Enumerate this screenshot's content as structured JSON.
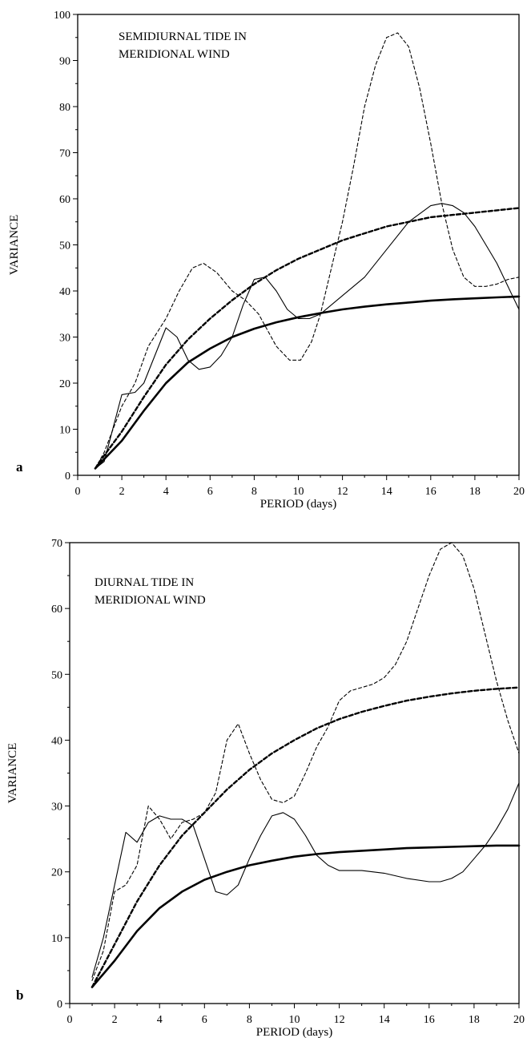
{
  "chart_data": [
    {
      "type": "line",
      "panel_label": "a",
      "annotation": [
        "SEMIDIURNAL TIDE IN",
        "MERIDIONAL WIND"
      ],
      "xlabel": "PERIOD (days)",
      "ylabel": "VARIANCE",
      "xlim": [
        0,
        20
      ],
      "ylim": [
        0,
        100
      ],
      "xticks": [
        0,
        2,
        4,
        6,
        8,
        10,
        12,
        14,
        16,
        18,
        20
      ],
      "yticks": [
        0,
        10,
        20,
        30,
        40,
        50,
        60,
        70,
        80,
        90,
        100
      ],
      "series": [
        {
          "style": "thin-dashed",
          "x": [
            0.8,
            1.2,
            2.0,
            2.6,
            3.2,
            4.0,
            4.6,
            5.2,
            5.7,
            6.3,
            7.0,
            7.6,
            8.2,
            9.0,
            9.6,
            10.1,
            10.6,
            11.0,
            11.5,
            12.0,
            12.5,
            13.0,
            13.5,
            14.0,
            14.5,
            15.0,
            15.5,
            16.0,
            16.5,
            17.0,
            17.5,
            18.0,
            18.5,
            19.0,
            19.5,
            20.0
          ],
          "y": [
            1.5,
            5,
            15,
            20,
            28,
            34,
            40,
            45,
            46,
            44,
            40,
            38,
            35,
            28,
            25,
            25,
            29,
            35,
            45,
            55,
            67,
            80,
            89,
            95,
            96,
            93,
            84,
            72,
            59,
            49,
            43,
            41,
            41,
            41.5,
            42.5,
            43
          ]
        },
        {
          "style": "thin-solid",
          "x": [
            0.8,
            1.2,
            2.0,
            2.6,
            3.0,
            3.5,
            4.0,
            4.5,
            5.0,
            5.5,
            6.0,
            6.5,
            7.0,
            7.5,
            8.0,
            8.5,
            9.0,
            9.5,
            10.0,
            10.5,
            11.0,
            12.0,
            13.0,
            14.0,
            15.0,
            16.0,
            16.5,
            17.0,
            17.5,
            18.0,
            18.5,
            19.0,
            19.5,
            20.0
          ],
          "y": [
            1.5,
            3,
            17.5,
            18,
            20,
            26,
            32,
            30,
            25,
            23,
            23.5,
            26,
            30,
            37,
            42.5,
            43,
            40,
            36,
            34,
            34,
            35,
            39,
            43,
            49,
            55,
            58.5,
            59,
            58.5,
            57,
            54,
            50,
            46,
            41,
            36
          ]
        },
        {
          "style": "bold-dashed",
          "x": [
            0.8,
            1,
            2,
            3,
            4,
            5,
            6,
            7,
            8,
            9,
            10,
            11,
            12,
            13,
            14,
            15,
            16,
            17,
            18,
            19,
            20
          ],
          "y": [
            1.5,
            3,
            9.5,
            17,
            24,
            29.5,
            34,
            38,
            41.5,
            44.5,
            47,
            49,
            51,
            52.5,
            54,
            55,
            56,
            56.5,
            57,
            57.5,
            58
          ]
        },
        {
          "style": "bold-solid",
          "x": [
            0.8,
            1,
            2,
            3,
            4,
            5,
            6,
            7,
            8,
            9,
            10,
            11,
            12,
            13,
            14,
            15,
            16,
            17,
            18,
            19,
            20
          ],
          "y": [
            1.5,
            2.5,
            7.5,
            14,
            20,
            24.5,
            27.5,
            30,
            31.8,
            33.2,
            34.3,
            35.2,
            36,
            36.6,
            37.1,
            37.5,
            37.9,
            38.2,
            38.4,
            38.6,
            38.8
          ]
        }
      ]
    },
    {
      "type": "line",
      "panel_label": "b",
      "annotation": [
        "DIURNAL TIDE IN",
        "MERIDIONAL WIND"
      ],
      "xlabel": "PERIOD (days)",
      "ylabel": "VARIANCE",
      "xlim": [
        0,
        20
      ],
      "ylim": [
        0,
        70
      ],
      "xticks": [
        0,
        2,
        4,
        6,
        8,
        10,
        12,
        14,
        16,
        18,
        20
      ],
      "yticks": [
        0,
        10,
        20,
        30,
        40,
        50,
        60,
        70
      ],
      "series": [
        {
          "style": "thin-dashed",
          "x": [
            1.0,
            1.5,
            2.0,
            2.5,
            3.0,
            3.5,
            4.0,
            4.5,
            5.0,
            5.5,
            6.0,
            6.5,
            7.0,
            7.5,
            8.0,
            8.5,
            9.0,
            9.5,
            10.0,
            10.5,
            11.0,
            11.5,
            12.0,
            12.5,
            13.0,
            13.5,
            14.0,
            14.5,
            15.0,
            15.5,
            16.0,
            16.5,
            17.0,
            17.5,
            18.0,
            18.5,
            19.0,
            19.5,
            20.0
          ],
          "y": [
            3.5,
            8,
            17,
            18,
            21,
            30,
            28,
            25,
            27.5,
            28,
            29,
            32,
            40,
            42.5,
            38,
            34,
            31,
            30.5,
            31.5,
            35,
            39,
            42,
            46,
            47.5,
            48,
            48.5,
            49.5,
            51.5,
            55,
            60,
            65,
            69,
            70,
            68,
            63,
            56,
            49,
            43,
            38
          ]
        },
        {
          "style": "thin-solid",
          "x": [
            1.0,
            1.5,
            2.0,
            2.5,
            3.0,
            3.5,
            4.0,
            4.5,
            5.0,
            5.5,
            6.0,
            6.5,
            7.0,
            7.5,
            8.0,
            8.5,
            9.0,
            9.5,
            10.0,
            10.5,
            11.0,
            11.5,
            12.0,
            13.0,
            14.0,
            15.0,
            16.0,
            16.5,
            17.0,
            17.5,
            18.0,
            18.5,
            19.0,
            19.5,
            20.0
          ],
          "y": [
            4,
            10,
            18,
            26,
            24.5,
            27.5,
            28.5,
            28,
            28,
            27,
            22,
            17,
            16.5,
            18,
            22,
            25.5,
            28.5,
            29,
            28,
            25.5,
            22.5,
            21,
            20.2,
            20.2,
            19.8,
            19,
            18.5,
            18.5,
            19,
            20,
            22,
            24,
            26.5,
            29.5,
            33.5
          ]
        },
        {
          "style": "bold-dashed",
          "x": [
            1,
            2,
            3,
            4,
            5,
            6,
            7,
            8,
            9,
            10,
            11,
            12,
            13,
            14,
            15,
            16,
            17,
            18,
            19,
            20
          ],
          "y": [
            2.5,
            9,
            15.5,
            21,
            25.5,
            29,
            32.5,
            35.5,
            38,
            40,
            41.8,
            43.2,
            44.3,
            45.2,
            46,
            46.6,
            47.1,
            47.5,
            47.8,
            48
          ]
        },
        {
          "style": "bold-solid",
          "x": [
            1,
            2,
            3,
            4,
            5,
            6,
            7,
            8,
            9,
            10,
            11,
            12,
            13,
            14,
            15,
            16,
            17,
            18,
            19,
            20
          ],
          "y": [
            2.5,
            6.5,
            11,
            14.5,
            17,
            18.8,
            20,
            21,
            21.7,
            22.3,
            22.7,
            23,
            23.2,
            23.4,
            23.6,
            23.7,
            23.8,
            23.9,
            24,
            24
          ]
        }
      ]
    }
  ]
}
